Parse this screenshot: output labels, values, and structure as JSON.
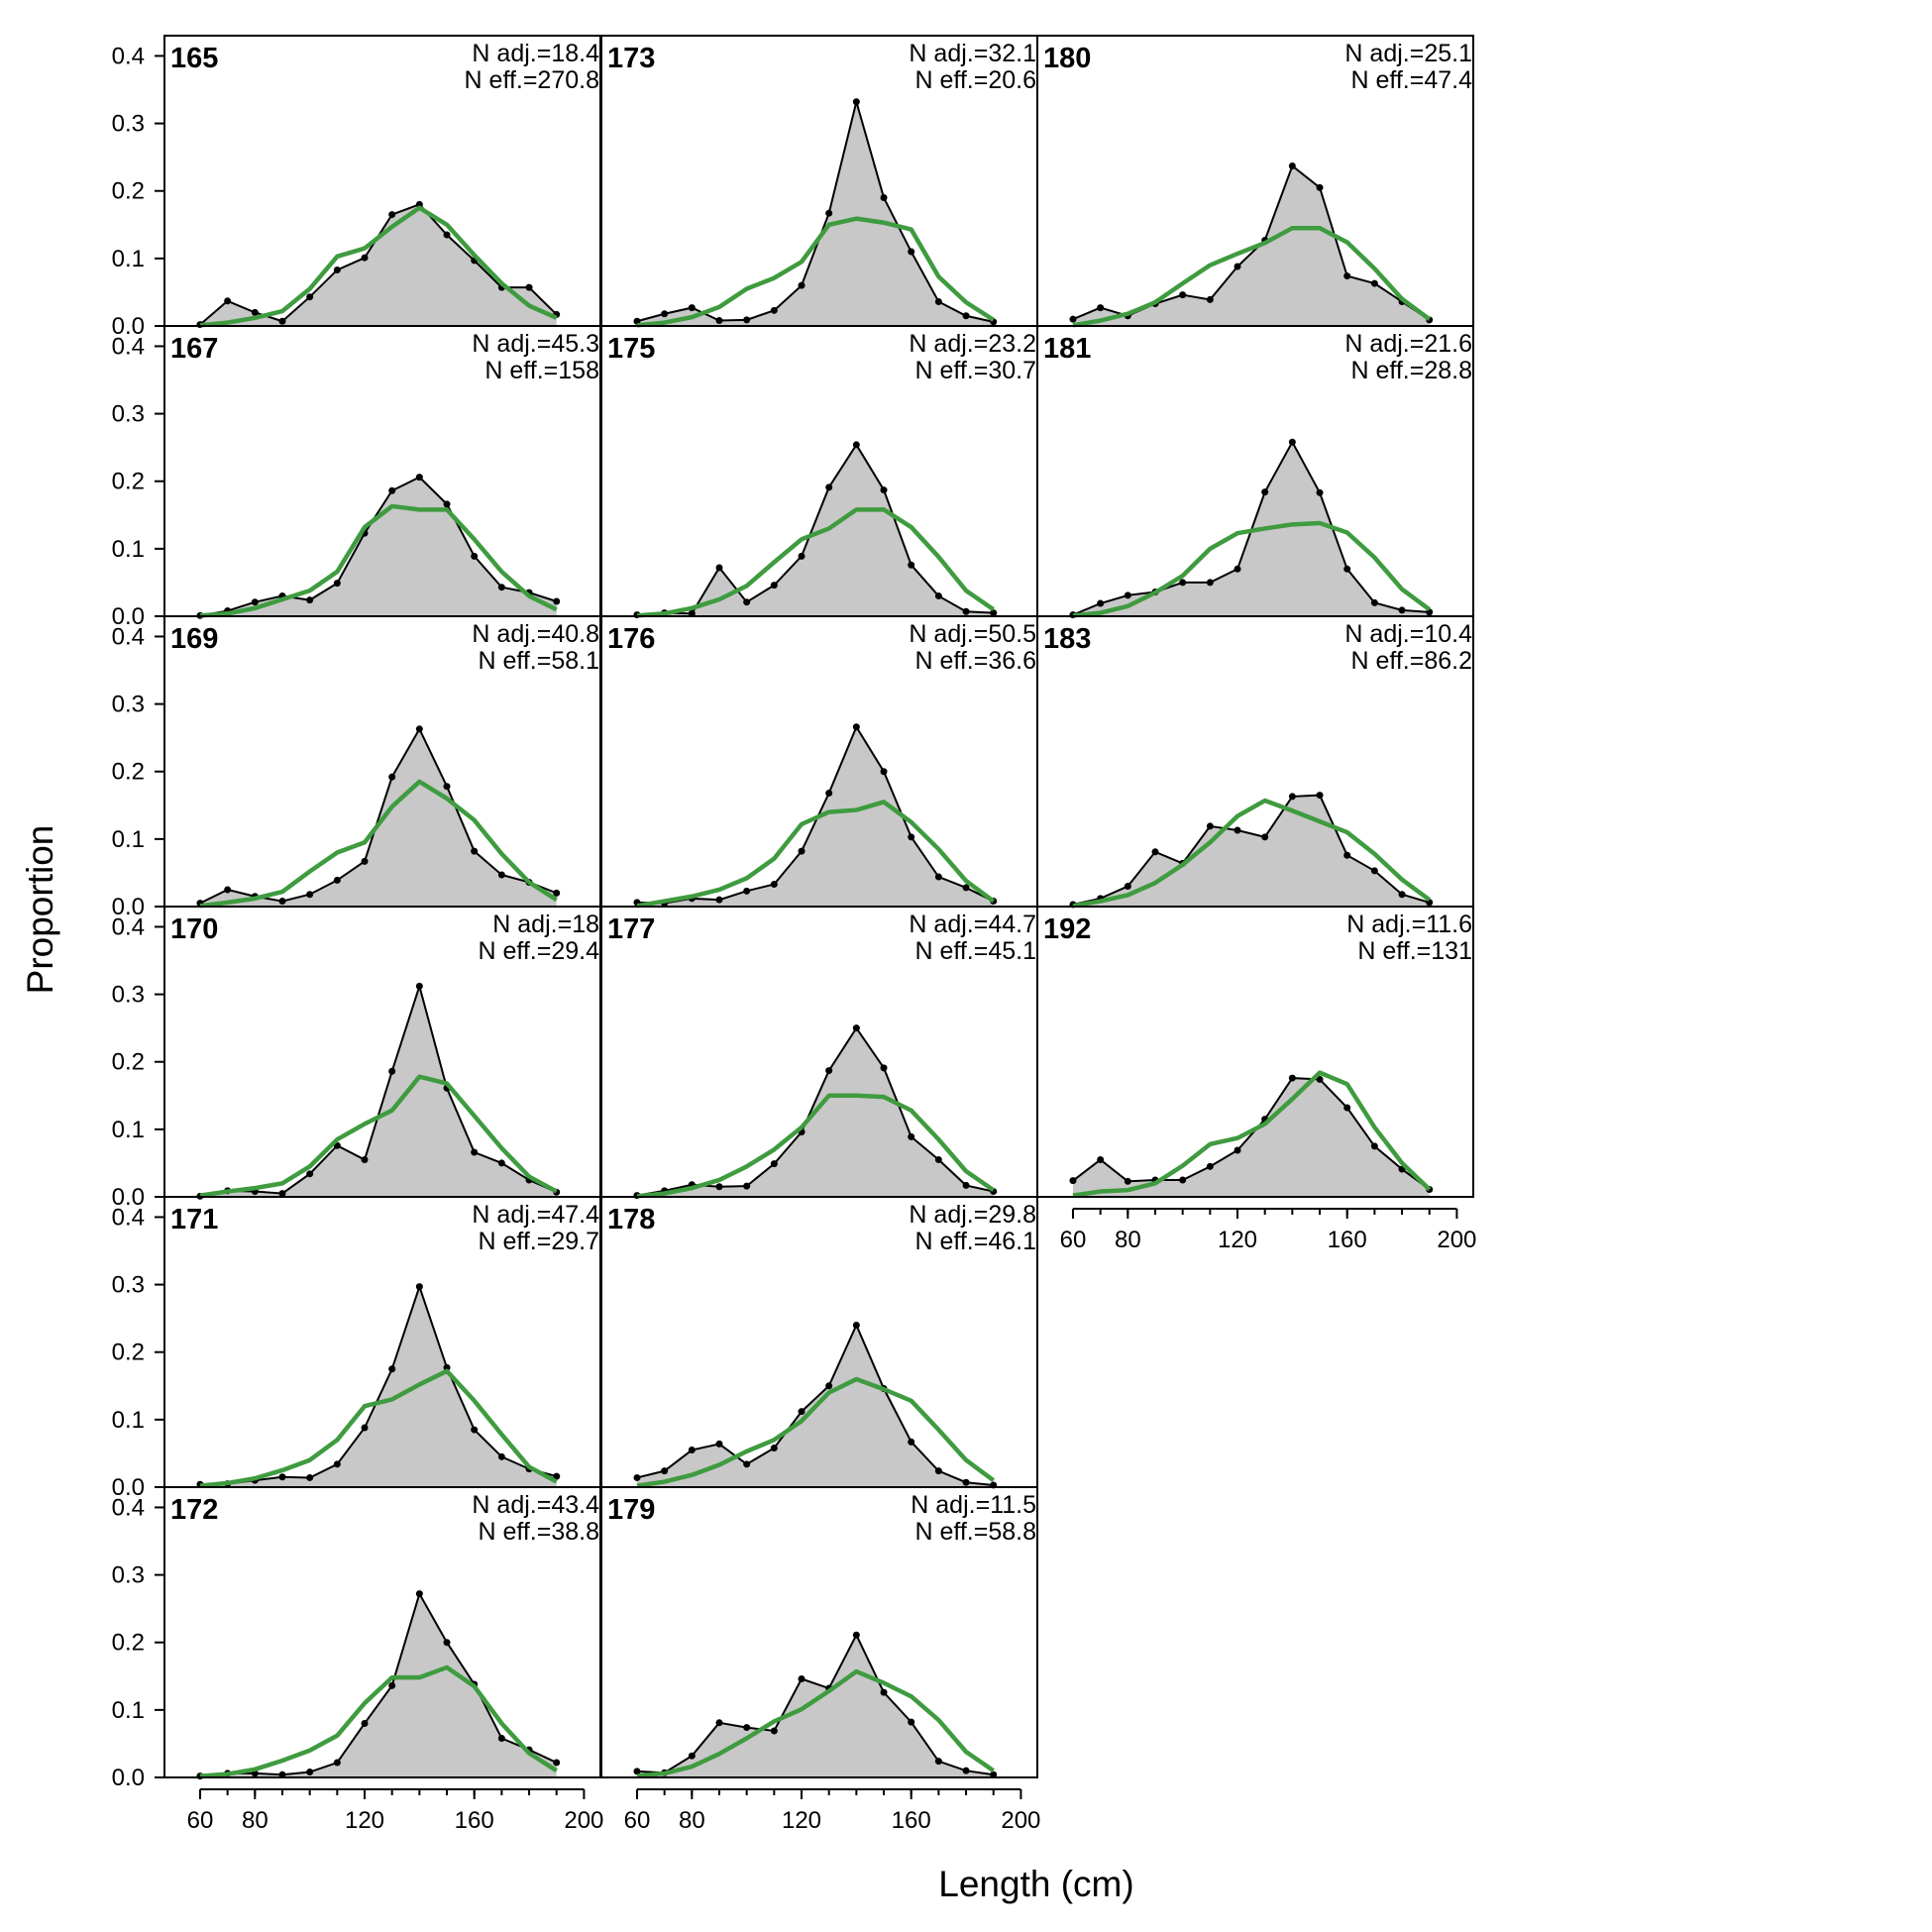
{
  "figure": {
    "ylabel": "Proportion",
    "xlabel": "Length (cm)",
    "colors": {
      "observed_fill": "#c8c8c8",
      "observed_line": "#000000",
      "expected_line": "#3f9b3f",
      "zero_line": "#b4b4b4"
    }
  },
  "chart_data": {
    "type": "area",
    "x": [
      60,
      70,
      80,
      90,
      100,
      110,
      120,
      130,
      140,
      150,
      160,
      170,
      180,
      190
    ],
    "xticks": [
      60,
      80,
      120,
      160,
      200
    ],
    "yticks": [
      0.0,
      0.1,
      0.2,
      0.3,
      0.4
    ],
    "ytick_labels": [
      "0.0",
      "0.1",
      "0.2",
      "0.3",
      "0.4"
    ],
    "xlim": [
      47,
      206
    ],
    "ylim": [
      0,
      0.43
    ],
    "panels": [
      {
        "id": "165",
        "n_adj": "N adj.=18.4",
        "n_eff": "N eff.=270.8",
        "observed": [
          0.002,
          0.037,
          0.02,
          0.007,
          0.043,
          0.083,
          0.101,
          0.165,
          0.18,
          0.135,
          0.097,
          0.057,
          0.057,
          0.017
        ],
        "expected": [
          0.001,
          0.005,
          0.012,
          0.022,
          0.055,
          0.103,
          0.115,
          0.147,
          0.175,
          0.15,
          0.105,
          0.063,
          0.03,
          0.012
        ]
      },
      {
        "id": "167",
        "n_adj": "N adj.=45.3",
        "n_eff": "N eff.=158",
        "observed": [
          0.001,
          0.008,
          0.021,
          0.03,
          0.024,
          0.049,
          0.123,
          0.186,
          0.206,
          0.166,
          0.089,
          0.043,
          0.035,
          0.022
        ],
        "expected": [
          0.001,
          0.004,
          0.012,
          0.025,
          0.038,
          0.066,
          0.132,
          0.163,
          0.158,
          0.158,
          0.114,
          0.066,
          0.03,
          0.01
        ]
      },
      {
        "id": "169",
        "n_adj": "N adj.=40.8",
        "n_eff": "N eff.=58.1",
        "observed": [
          0.005,
          0.025,
          0.015,
          0.008,
          0.018,
          0.039,
          0.067,
          0.192,
          0.263,
          0.178,
          0.082,
          0.047,
          0.036,
          0.02
        ],
        "expected": [
          0.001,
          0.006,
          0.012,
          0.022,
          0.052,
          0.08,
          0.095,
          0.148,
          0.185,
          0.16,
          0.128,
          0.078,
          0.036,
          0.01
        ]
      },
      {
        "id": "170",
        "n_adj": "N adj.=18",
        "n_eff": "N eff.=29.4",
        "observed": [
          0.001,
          0.009,
          0.008,
          0.005,
          0.034,
          0.076,
          0.055,
          0.186,
          0.312,
          0.161,
          0.066,
          0.05,
          0.025,
          0.007
        ],
        "expected": [
          0.002,
          0.008,
          0.013,
          0.02,
          0.045,
          0.085,
          0.108,
          0.128,
          0.178,
          0.168,
          0.12,
          0.072,
          0.03,
          0.008
        ]
      },
      {
        "id": "171",
        "n_adj": "N adj.=47.4",
        "n_eff": "N eff.=29.7",
        "observed": [
          0.004,
          0.005,
          0.01,
          0.015,
          0.014,
          0.034,
          0.088,
          0.175,
          0.297,
          0.177,
          0.085,
          0.045,
          0.027,
          0.016
        ],
        "expected": [
          0.002,
          0.006,
          0.013,
          0.025,
          0.04,
          0.07,
          0.12,
          0.13,
          0.152,
          0.172,
          0.128,
          0.078,
          0.03,
          0.008
        ]
      },
      {
        "id": "172",
        "n_adj": "N adj.=43.4",
        "n_eff": "N eff.=38.8",
        "observed": [
          0.002,
          0.006,
          0.006,
          0.004,
          0.008,
          0.022,
          0.08,
          0.136,
          0.272,
          0.2,
          0.138,
          0.058,
          0.041,
          0.022
        ],
        "expected": [
          0.002,
          0.005,
          0.012,
          0.025,
          0.04,
          0.062,
          0.11,
          0.148,
          0.148,
          0.163,
          0.135,
          0.08,
          0.036,
          0.01
        ]
      },
      {
        "id": "173",
        "n_adj": "N adj.=32.1",
        "n_eff": "N eff.=20.6",
        "observed": [
          0.007,
          0.018,
          0.027,
          0.008,
          0.009,
          0.023,
          0.06,
          0.167,
          0.332,
          0.19,
          0.11,
          0.036,
          0.015,
          0.006
        ],
        "expected": [
          0.001,
          0.005,
          0.013,
          0.028,
          0.055,
          0.071,
          0.095,
          0.15,
          0.159,
          0.153,
          0.143,
          0.073,
          0.035,
          0.009
        ]
      },
      {
        "id": "175",
        "n_adj": "N adj.=23.2",
        "n_eff": "N eff.=30.7",
        "observed": [
          0.002,
          0.005,
          0.004,
          0.072,
          0.021,
          0.046,
          0.089,
          0.191,
          0.254,
          0.187,
          0.076,
          0.03,
          0.007,
          0.005
        ],
        "expected": [
          0.001,
          0.004,
          0.012,
          0.025,
          0.045,
          0.08,
          0.114,
          0.13,
          0.158,
          0.158,
          0.132,
          0.088,
          0.038,
          0.01
        ]
      },
      {
        "id": "176",
        "n_adj": "N adj.=50.5",
        "n_eff": "N eff.=36.6",
        "observed": [
          0.006,
          0.005,
          0.012,
          0.01,
          0.023,
          0.033,
          0.082,
          0.168,
          0.266,
          0.2,
          0.103,
          0.044,
          0.028,
          0.008
        ],
        "expected": [
          0.001,
          0.008,
          0.015,
          0.025,
          0.042,
          0.071,
          0.122,
          0.14,
          0.143,
          0.155,
          0.125,
          0.085,
          0.038,
          0.008
        ]
      },
      {
        "id": "177",
        "n_adj": "N adj.=44.7",
        "n_eff": "N eff.=45.1",
        "observed": [
          0.002,
          0.009,
          0.018,
          0.015,
          0.016,
          0.049,
          0.096,
          0.187,
          0.25,
          0.191,
          0.089,
          0.055,
          0.017,
          0.008
        ],
        "expected": [
          0.001,
          0.005,
          0.013,
          0.025,
          0.045,
          0.07,
          0.103,
          0.15,
          0.15,
          0.148,
          0.128,
          0.085,
          0.038,
          0.01
        ]
      },
      {
        "id": "178",
        "n_adj": "N adj.=29.8",
        "n_eff": "N eff.=46.1",
        "observed": [
          0.014,
          0.024,
          0.055,
          0.064,
          0.034,
          0.058,
          0.112,
          0.15,
          0.24,
          0.146,
          0.067,
          0.024,
          0.007,
          0.003
        ],
        "expected": [
          0.002,
          0.008,
          0.018,
          0.033,
          0.053,
          0.07,
          0.098,
          0.14,
          0.16,
          0.145,
          0.128,
          0.085,
          0.04,
          0.01
        ]
      },
      {
        "id": "179",
        "n_adj": "N adj.=11.5",
        "n_eff": "N eff.=58.8",
        "observed": [
          0.009,
          0.007,
          0.032,
          0.081,
          0.074,
          0.069,
          0.146,
          0.132,
          0.211,
          0.126,
          0.082,
          0.024,
          0.01,
          0.004
        ],
        "expected": [
          0.002,
          0.006,
          0.016,
          0.035,
          0.058,
          0.083,
          0.101,
          0.128,
          0.157,
          0.14,
          0.12,
          0.085,
          0.038,
          0.01
        ]
      },
      {
        "id": "180",
        "n_adj": "N adj.=25.1",
        "n_eff": "N eff.=47.4",
        "observed": [
          0.01,
          0.027,
          0.015,
          0.033,
          0.046,
          0.039,
          0.088,
          0.127,
          0.237,
          0.205,
          0.074,
          0.063,
          0.036,
          0.009
        ],
        "expected": [
          0.001,
          0.008,
          0.018,
          0.035,
          0.063,
          0.09,
          0.107,
          0.123,
          0.145,
          0.145,
          0.124,
          0.085,
          0.04,
          0.01
        ]
      },
      {
        "id": "181",
        "n_adj": "N adj.=21.6",
        "n_eff": "N eff.=28.8",
        "observed": [
          0.002,
          0.019,
          0.031,
          0.036,
          0.05,
          0.05,
          0.07,
          0.184,
          0.258,
          0.183,
          0.07,
          0.02,
          0.009,
          0.006
        ],
        "expected": [
          0.001,
          0.005,
          0.015,
          0.035,
          0.06,
          0.1,
          0.123,
          0.13,
          0.136,
          0.138,
          0.124,
          0.087,
          0.04,
          0.01
        ]
      },
      {
        "id": "183",
        "n_adj": "N adj.=10.4",
        "n_eff": "N eff.=86.2",
        "observed": [
          0.003,
          0.012,
          0.03,
          0.081,
          0.064,
          0.119,
          0.113,
          0.103,
          0.163,
          0.165,
          0.076,
          0.053,
          0.018,
          0.006
        ],
        "expected": [
          0.001,
          0.008,
          0.017,
          0.035,
          0.062,
          0.095,
          0.134,
          0.157,
          0.142,
          0.126,
          0.11,
          0.078,
          0.04,
          0.01
        ]
      },
      {
        "id": "192",
        "n_adj": "N adj.=11.6",
        "n_eff": "N eff.=131",
        "observed": [
          0.024,
          0.055,
          0.023,
          0.025,
          0.025,
          0.045,
          0.069,
          0.115,
          0.176,
          0.174,
          0.132,
          0.075,
          0.041,
          0.011
        ],
        "expected": [
          0.002,
          0.008,
          0.01,
          0.02,
          0.046,
          0.078,
          0.087,
          0.108,
          0.145,
          0.184,
          0.167,
          0.103,
          0.05,
          0.011
        ]
      }
    ]
  }
}
